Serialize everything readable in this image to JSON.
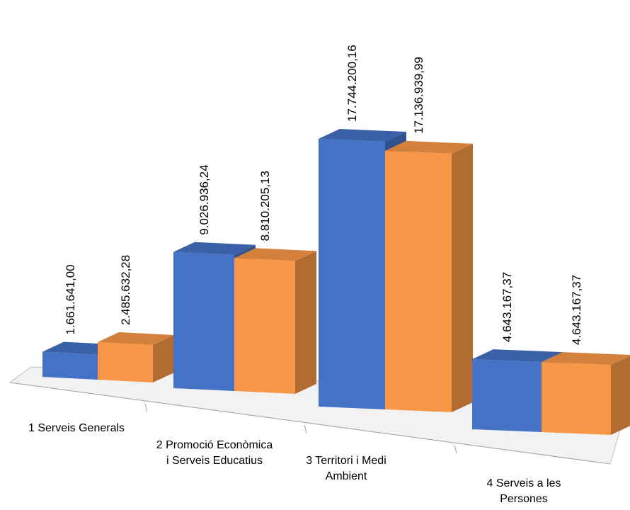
{
  "chart_data": {
    "type": "bar",
    "style": "3d-clustered-column",
    "title": "",
    "xlabel": "",
    "ylabel": "",
    "grid": false,
    "legend": "none",
    "categories": [
      "1 Serveis Generals",
      "2 Promoció Econòmica i Serveis Educatius",
      "3 Territori i Medi Ambient",
      "4 Serveis a les Persones"
    ],
    "series": [
      {
        "color": "#4472C4",
        "values": [
          1661641.0,
          9026936.24,
          17744200.16,
          4643167.37
        ],
        "labels": [
          "1.661.641,00",
          "9.026.936,24",
          "17.744.200,16",
          "4.643.167,37"
        ]
      },
      {
        "color": "#F79646",
        "values": [
          2485632.28,
          8810205.13,
          17136939.99,
          4643167.37
        ],
        "labels": [
          "2.485.632,28",
          "8.810.205,13",
          "17.136.939,99",
          "4.643.167,37"
        ]
      }
    ],
    "colors": {
      "floor": "#f2f2f2",
      "floor_edge": "#bfbfbf"
    }
  }
}
